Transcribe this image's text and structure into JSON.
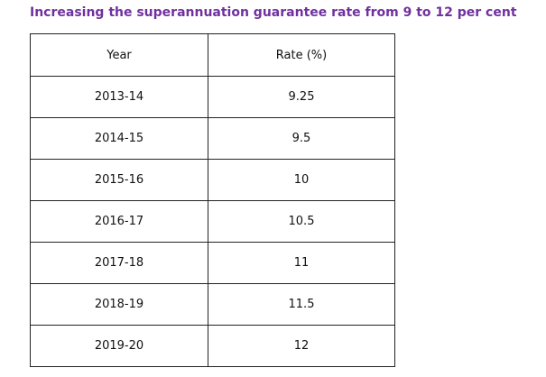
{
  "title": "Increasing the superannuation guarantee rate from 9 to 12 per cent",
  "table": {
    "header": [
      "Year",
      "Rate (%)"
    ],
    "rows": [
      [
        "2013-14",
        9.25
      ],
      [
        "2014-15",
        9.5
      ],
      [
        "2015-16",
        10
      ],
      [
        "2016-17",
        10.5
      ],
      [
        "2017-18",
        11
      ],
      [
        "2018-19",
        11.5
      ],
      [
        "2019-20",
        12
      ]
    ]
  }
}
